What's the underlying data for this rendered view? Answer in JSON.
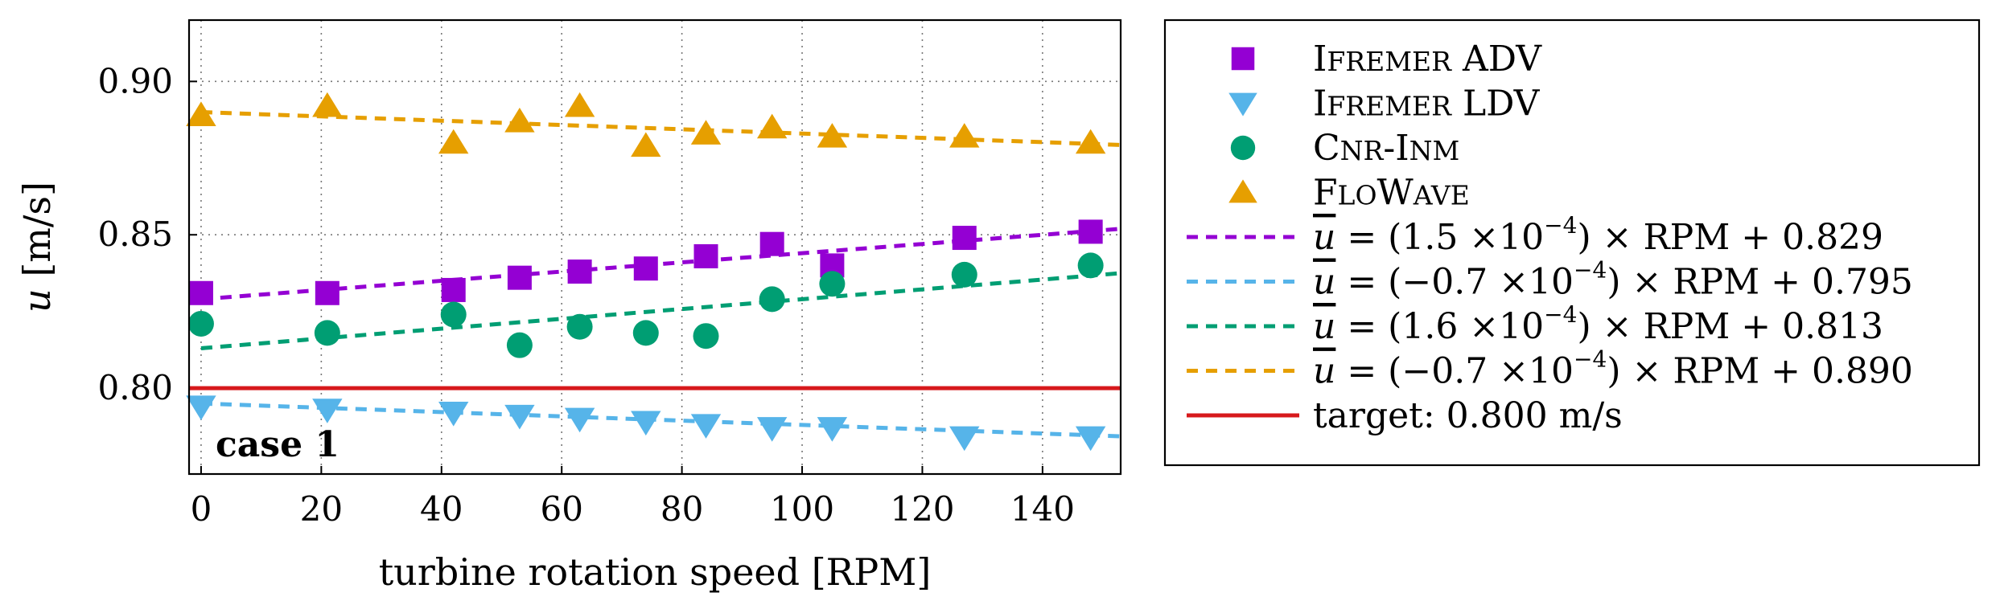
{
  "chart_data": {
    "type": "scatter",
    "xlabel": "turbine rotation speed [RPM]",
    "ylabel": {
      "var": "u",
      "unit": "[m/s]"
    },
    "xlim": [
      -2,
      153
    ],
    "ylim": [
      0.772,
      0.92
    ],
    "x_ticks": [
      0,
      20,
      40,
      60,
      80,
      100,
      120,
      140
    ],
    "x_tick_labels": [
      "0",
      "20",
      "40",
      "60",
      "80",
      "100",
      "120",
      "140"
    ],
    "y_ticks": [
      0.8,
      0.85,
      0.9
    ],
    "y_tick_labels": [
      "0.80",
      "0.85",
      "0.90"
    ],
    "grid": "dotted",
    "annotation": "case 1",
    "series": [
      {
        "name": "Ifremer ADV",
        "marker": "square",
        "color": "#9400D3",
        "x": [
          0,
          21,
          42,
          53,
          63,
          74,
          84,
          95,
          105,
          127,
          148
        ],
        "y": [
          0.831,
          0.831,
          0.832,
          0.836,
          0.838,
          0.839,
          0.843,
          0.847,
          0.84,
          0.849,
          0.851
        ]
      },
      {
        "name": "Ifremer LDV",
        "marker": "triangle-down",
        "color": "#56B4E9",
        "x": [
          0,
          21,
          42,
          53,
          63,
          74,
          84,
          95,
          105,
          127,
          148
        ],
        "y": [
          0.794,
          0.793,
          0.792,
          0.791,
          0.79,
          0.789,
          0.788,
          0.787,
          0.787,
          0.784,
          0.784
        ]
      },
      {
        "name": "Cnr-Inm",
        "marker": "circle",
        "color": "#009E73",
        "x": [
          0,
          21,
          42,
          53,
          63,
          74,
          84,
          95,
          105,
          127,
          148
        ],
        "y": [
          0.821,
          0.818,
          0.824,
          0.814,
          0.82,
          0.818,
          0.817,
          0.829,
          0.834,
          0.837,
          0.84
        ]
      },
      {
        "name": "FloWave",
        "marker": "triangle-up",
        "color": "#E69F00",
        "x": [
          0,
          21,
          42,
          53,
          63,
          74,
          84,
          95,
          105,
          127,
          148
        ],
        "y": [
          0.889,
          0.892,
          0.88,
          0.887,
          0.892,
          0.879,
          0.883,
          0.885,
          0.882,
          0.882,
          0.88
        ]
      }
    ],
    "fits": [
      {
        "slope_coef": "1.5",
        "slope_exp": "−4",
        "intercept": "0.829",
        "slope": 0.00015,
        "b": 0.829,
        "color": "#9400D3"
      },
      {
        "slope_coef": "−0.7",
        "slope_exp": "−4",
        "intercept": "0.795",
        "slope": -7e-05,
        "b": 0.795,
        "color": "#56B4E9"
      },
      {
        "slope_coef": "1.6",
        "slope_exp": "−4",
        "intercept": "0.813",
        "slope": 0.00016,
        "b": 0.813,
        "color": "#009E73"
      },
      {
        "slope_coef": "−0.7",
        "slope_exp": "−4",
        "intercept": "0.890",
        "slope": -7e-05,
        "b": 0.89,
        "color": "#E69F00"
      }
    ],
    "target": {
      "label": "target:",
      "value": "0.800",
      "unit": "m/s",
      "y": 0.8,
      "color": "#D7191C"
    }
  },
  "legend": {
    "series_labels": [
      {
        "first": "I",
        "rest": "fremer",
        "tail": " ADV"
      },
      {
        "first": "I",
        "rest": "fremer",
        "tail": " LDV"
      },
      {
        "first": "C",
        "rest": "nr",
        "tail": "-",
        "first2": "I",
        "rest2": "nm"
      },
      {
        "first": "F",
        "rest": "lo",
        "tail": "",
        "first2": "W",
        "rest2": "ave"
      }
    ],
    "fit_template": {
      "ubar": "u",
      "eq": " = (",
      "times": ") × RPM + ",
      "ten": "×10"
    }
  }
}
